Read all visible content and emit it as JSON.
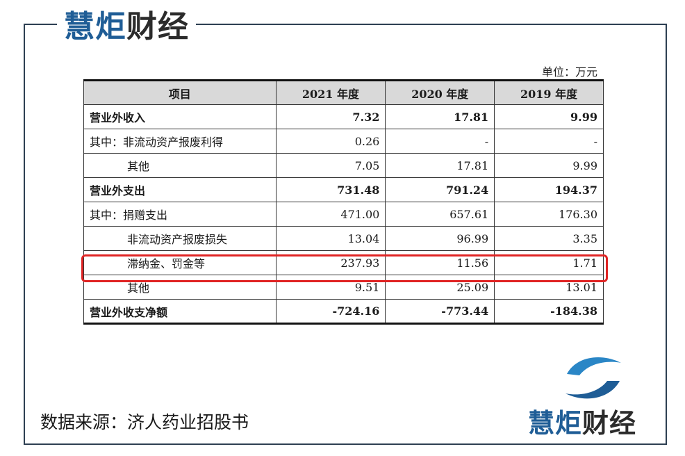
{
  "brand": {
    "part1": "慧炬",
    "part2": "财经"
  },
  "unit_label": "单位：万元",
  "table": {
    "headers": [
      "项目",
      "2021 年度",
      "2020 年度",
      "2019 年度"
    ],
    "rows": [
      {
        "label": "营业外收入",
        "values": [
          "7.32",
          "17.81",
          "9.99"
        ]
      },
      {
        "label": "其中：非流动资产报废利得",
        "values": [
          "0.26",
          "-",
          "-"
        ]
      },
      {
        "label": "其他",
        "values": [
          "7.05",
          "17.81",
          "9.99"
        ]
      },
      {
        "label": "营业外支出",
        "values": [
          "731.48",
          "791.24",
          "194.37"
        ]
      },
      {
        "label": "其中：捐赠支出",
        "values": [
          "471.00",
          "657.61",
          "176.30"
        ]
      },
      {
        "label": "非流动资产报废损失",
        "values": [
          "13.04",
          "96.99",
          "3.35"
        ]
      },
      {
        "label": "滞纳金、罚金等",
        "values": [
          "237.93",
          "11.56",
          "1.71"
        ]
      },
      {
        "label": "其他",
        "values": [
          "9.51",
          "25.09",
          "13.01"
        ]
      },
      {
        "label": "营业外收支净额",
        "values": [
          "-724.16",
          "-773.44",
          "-184.38"
        ]
      }
    ]
  },
  "source_text": "数据来源：济人药业招股书",
  "colors": {
    "brand_blue": "#1f5d96",
    "highlight": "#e02424"
  }
}
